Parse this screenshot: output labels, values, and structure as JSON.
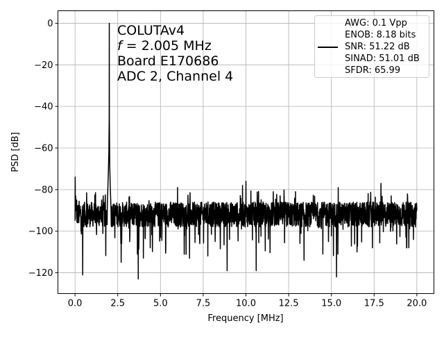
{
  "chart_data": {
    "type": "line",
    "xlabel": "Frequency [MHz]",
    "ylabel": "PSD [dB]",
    "xlim": [
      -1.0,
      21.0
    ],
    "ylim": [
      -130,
      6
    ],
    "xticks": [
      0.0,
      2.5,
      5.0,
      7.5,
      10.0,
      12.5,
      15.0,
      17.5,
      20.0
    ],
    "xtick_labels": [
      "0.0",
      "2.5",
      "5.0",
      "7.5",
      "10.0",
      "12.5",
      "15.0",
      "17.5",
      "20.0"
    ],
    "yticks": [
      0,
      -20,
      -40,
      -60,
      -80,
      -100,
      -120
    ],
    "ytick_labels": [
      "0",
      "−20",
      "−40",
      "−60",
      "−80",
      "−100",
      "−120"
    ],
    "grid": true,
    "series_color": "#000000",
    "annotation": {
      "line1": "COLUTAv4",
      "line2_symbol": "f",
      "line2_rest": " = 2.005 MHz",
      "line3": "Board E170686",
      "line4": "ADC 2, Channel 4"
    },
    "legend": {
      "placement": "top-right",
      "entries": [
        "AWG: 0.1 Vpp",
        "ENOB: 8.18 bits",
        "SNR: 51.22 dB",
        "SINAD: 51.01 dB",
        "SFDR: 65.99"
      ]
    },
    "series": [
      {
        "noise_floor_db": -92,
        "noise_spread_db": 6,
        "points": [
          [
            0.0,
            -95
          ],
          [
            0.01,
            -74
          ],
          [
            0.02,
            -88
          ],
          [
            0.05,
            -90
          ],
          [
            0.1,
            -85
          ],
          [
            0.15,
            -96
          ],
          [
            0.2,
            -92
          ],
          [
            0.3,
            -88
          ],
          [
            0.35,
            -100
          ],
          [
            0.45,
            -121
          ],
          [
            0.5,
            -90
          ],
          [
            1.9,
            -85
          ],
          [
            1.95,
            -72
          ],
          [
            1.98,
            -62
          ],
          [
            2.0,
            -45
          ],
          [
            2.005,
            0
          ],
          [
            2.01,
            -45
          ],
          [
            2.03,
            -68
          ],
          [
            2.06,
            -78
          ],
          [
            2.1,
            -88
          ],
          [
            2.7,
            -115
          ],
          [
            3.2,
            -105
          ],
          [
            3.7,
            -123
          ],
          [
            4.0,
            -113
          ],
          [
            4.4,
            -108
          ],
          [
            5.0,
            -103
          ],
          [
            5.6,
            -86
          ],
          [
            6.0,
            -79
          ],
          [
            6.7,
            -113
          ],
          [
            7.3,
            -106
          ],
          [
            8.2,
            -105
          ],
          [
            8.9,
            -119
          ],
          [
            9.8,
            -78
          ],
          [
            10.0,
            -76
          ],
          [
            10.6,
            -119
          ],
          [
            11.0,
            -86
          ],
          [
            11.6,
            -81
          ],
          [
            12.0,
            -83
          ],
          [
            13.4,
            -114
          ],
          [
            14.5,
            -111
          ],
          [
            15.3,
            -122
          ],
          [
            15.4,
            -79
          ],
          [
            16.5,
            -110
          ],
          [
            17.4,
            -108
          ],
          [
            17.9,
            -77
          ],
          [
            18.5,
            -83
          ],
          [
            19.4,
            -108
          ],
          [
            19.8,
            -104
          ],
          [
            20.0,
            -90
          ]
        ]
      }
    ]
  }
}
